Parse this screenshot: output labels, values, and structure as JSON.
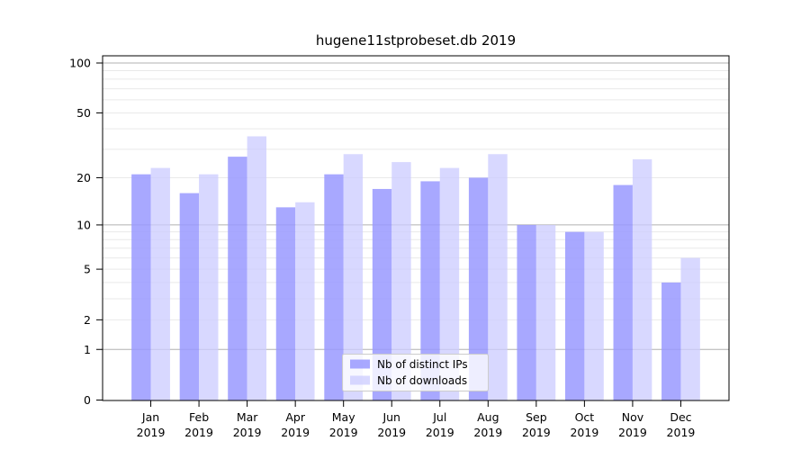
{
  "title": "hugene11stprobeset.db 2019",
  "chart_data": {
    "type": "bar",
    "yscale": "log1p",
    "title": "hugene11stprobeset.db 2019",
    "categories": [
      "Jan",
      "Feb",
      "Mar",
      "Apr",
      "May",
      "Jun",
      "Jul",
      "Aug",
      "Sep",
      "Oct",
      "Nov",
      "Dec"
    ],
    "year": "2019",
    "series": [
      {
        "name": "Nb of distinct IPs",
        "key": "distinct-ips",
        "color": "#9999ff",
        "values": [
          21,
          16,
          27,
          13,
          21,
          17,
          19,
          20,
          10,
          9,
          18,
          4
        ]
      },
      {
        "name": "Nb of downloads",
        "key": "downloads",
        "color": "#ccccff",
        "values": [
          23,
          21,
          36,
          14,
          28,
          25,
          23,
          28,
          10,
          9,
          26,
          6
        ]
      }
    ],
    "yticks": [
      0,
      1,
      2,
      5,
      10,
      20,
      50,
      100
    ],
    "ytick_labels": [
      "0",
      "1",
      "2",
      "5",
      "10",
      "20",
      "50",
      "100"
    ],
    "ylim": [
      0,
      110
    ],
    "grid": true,
    "gridlines": {
      "major": [
        1,
        10,
        100
      ],
      "minor": [
        2,
        3,
        4,
        5,
        6,
        7,
        8,
        9,
        20,
        30,
        40,
        50,
        60,
        70,
        80,
        90
      ]
    },
    "legend_position": "bottom-center",
    "colors": {
      "bar_distinct_ips": "#9999ff",
      "bar_downloads": "#ccccff",
      "grid_major": "#b0b0b0",
      "grid_minor": "#e9e9e9",
      "axis": "#000000",
      "legend_border": "#cccccc",
      "legend_bg": "#ffffff"
    }
  }
}
